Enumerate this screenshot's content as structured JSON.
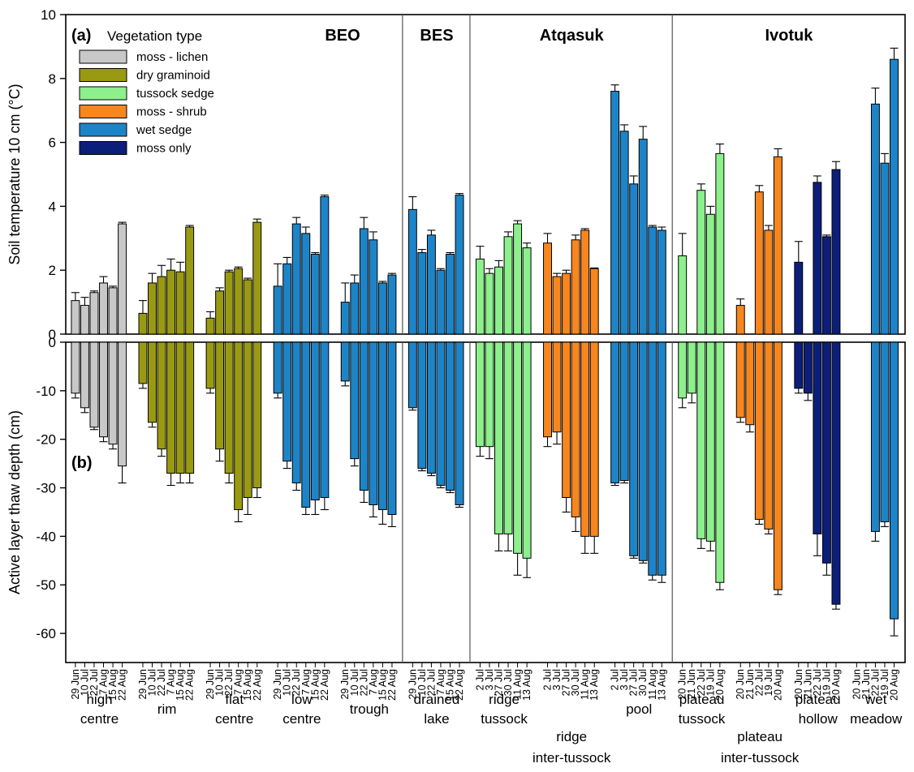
{
  "chart_data": {
    "type": "bar",
    "panels": [
      {
        "id": "a",
        "label": "(a)",
        "ylabel": "Soil temperature 10 cm  (°C)",
        "ylim": [
          0,
          10
        ],
        "yticks": [
          "0",
          "2",
          "4",
          "6",
          "8",
          "10"
        ],
        "ytick_values": [
          0,
          2,
          4,
          6,
          8,
          10
        ]
      },
      {
        "id": "b",
        "label": "(b)",
        "ylabel": "Active layer thaw depth (cm)",
        "ylim": [
          -66,
          0
        ],
        "yticks": [
          "0",
          "-10",
          "-20",
          "-30",
          "-40",
          "-50",
          "-60"
        ],
        "ytick_values": [
          0,
          -10,
          -20,
          -30,
          -40,
          -50,
          -60
        ]
      }
    ],
    "legend": {
      "title": "Vegetation type",
      "placement": "top-left",
      "items": [
        {
          "name": "moss - lichen",
          "color": "#c8c8c8"
        },
        {
          "name": "dry graminoid",
          "color": "#9a9a12"
        },
        {
          "name": "tussock sedge",
          "color": "#8cf08c"
        },
        {
          "name": "moss - shrub",
          "color": "#f7861f"
        },
        {
          "name": "wet sedge",
          "color": "#1e84c8"
        },
        {
          "name": "moss only",
          "color": "#0b1f7a"
        }
      ]
    },
    "sites": [
      {
        "name": "BEO",
        "first_group": 0,
        "last_group": 4
      },
      {
        "name": "BES",
        "first_group": 5,
        "last_group": 5
      },
      {
        "name": "Atqasuk",
        "first_group": 6,
        "last_group": 8
      },
      {
        "name": "Ivotuk",
        "first_group": 9,
        "last_group": 12
      }
    ],
    "groups": [
      {
        "label": [
          "high",
          "centre"
        ],
        "veg": 0,
        "dates": [
          "29 Jun",
          "10 Jul",
          "22 Jul",
          "7 Aug",
          "15 Aug",
          "22 Aug"
        ],
        "temp": [
          1.05,
          0.9,
          1.3,
          1.6,
          1.45,
          3.45
        ],
        "temp_err": [
          0.25,
          0.25,
          0.05,
          0.2,
          0.05,
          0.05
        ],
        "thaw": [
          -10.5,
          -13.5,
          -17.5,
          -19.5,
          -21,
          -25.5
        ],
        "thaw_err": [
          1,
          1,
          0.5,
          1,
          1,
          3.5
        ]
      },
      {
        "label": [
          "rim"
        ],
        "veg": 1,
        "dates": [
          "29 Jun",
          "10 Jul",
          "22 Jul",
          "7 Aug",
          "15 Aug",
          "22 Aug"
        ],
        "temp": [
          0.65,
          1.6,
          1.8,
          2.0,
          1.95,
          3.35
        ],
        "temp_err": [
          0.4,
          0.3,
          0.35,
          0.35,
          0.3,
          0.05
        ],
        "thaw": [
          -8.5,
          -16.5,
          -22,
          -27,
          -27,
          -27
        ],
        "thaw_err": [
          1,
          1,
          1.5,
          2.5,
          2,
          2
        ]
      },
      {
        "label": [
          "flat",
          "centre"
        ],
        "veg": 1,
        "dates": [
          "29 Jun",
          "10 Jul",
          "22 Jul",
          "7 Aug",
          "15 Aug",
          "22 Aug"
        ],
        "temp": [
          0.5,
          1.35,
          1.95,
          2.05,
          1.7,
          3.5
        ],
        "temp_err": [
          0.2,
          0.1,
          0.05,
          0.05,
          0.05,
          0.1
        ],
        "thaw": [
          -9.5,
          -22,
          -27,
          -34.5,
          -32,
          -30
        ],
        "thaw_err": [
          1,
          2.5,
          2,
          2.5,
          3.5,
          2
        ]
      },
      {
        "label": [
          "low",
          "centre"
        ],
        "veg": 4,
        "dates": [
          "29 Jun",
          "10 Jul",
          "22 Jul",
          "7 Aug",
          "15 Aug",
          "22 Aug"
        ],
        "temp": [
          1.5,
          2.2,
          3.45,
          3.15,
          2.5,
          4.3
        ],
        "temp_err": [
          0.7,
          0.2,
          0.2,
          0.2,
          0.05,
          0.05
        ],
        "thaw": [
          -10.5,
          -24.5,
          -29,
          -34,
          -32.5,
          -32
        ],
        "thaw_err": [
          1,
          1.5,
          1.5,
          1.5,
          3,
          2.5
        ]
      },
      {
        "label": [
          "trough"
        ],
        "veg": 4,
        "dates": [
          "29 Jun",
          "10 Jul",
          "22 Jul",
          "7 Aug",
          "15 Aug",
          "22 Aug"
        ],
        "temp": [
          1.0,
          1.6,
          3.3,
          2.95,
          1.6,
          1.85
        ],
        "temp_err": [
          0.6,
          0.25,
          0.35,
          0.25,
          0.05,
          0.05
        ],
        "thaw": [
          -8,
          -24,
          -30.5,
          -33.5,
          -34.5,
          -35.5
        ],
        "thaw_err": [
          1,
          1.5,
          2.5,
          2.5,
          3,
          2.5
        ]
      },
      {
        "label": [
          "drained",
          "lake"
        ],
        "veg": 4,
        "dates": [
          "29 Jun",
          "10 Jul",
          "22 Jul",
          "7 Aug",
          "15 Aug",
          "22 Aug"
        ],
        "temp": [
          3.9,
          2.55,
          3.1,
          2.0,
          2.5,
          4.35
        ],
        "temp_err": [
          0.4,
          0.1,
          0.15,
          0.05,
          0.05,
          0.05
        ],
        "thaw": [
          -13.5,
          -26,
          -27,
          -29.5,
          -30.5,
          -33.5
        ],
        "thaw_err": [
          0.5,
          0.5,
          0.5,
          0.5,
          0.5,
          0.5
        ]
      },
      {
        "label": [
          "ridge",
          "tussock"
        ],
        "veg": 2,
        "dates": [
          "2 Jul",
          "3 Jul",
          "27 Jul",
          "30 Jul",
          "11 Aug",
          "13 Aug"
        ],
        "temp": [
          2.35,
          1.9,
          2.1,
          3.05,
          3.45,
          2.7
        ],
        "temp_err": [
          0.4,
          0.15,
          0.2,
          0.15,
          0.1,
          0.15
        ],
        "thaw": [
          -21.5,
          -21.5,
          -39.5,
          -39.5,
          -43.5,
          -44.5
        ],
        "thaw_err": [
          2,
          2.5,
          3.5,
          3.5,
          4.5,
          4
        ]
      },
      {
        "label": [
          "ridge",
          "inter-tussock"
        ],
        "veg": 3,
        "dates": [
          "2 Jul",
          "3 Jul",
          "27 Jul",
          "30 Jul",
          "11 Aug",
          "13 Aug"
        ],
        "temp": [
          2.85,
          1.8,
          1.9,
          2.95,
          3.25,
          2.05
        ],
        "temp_err": [
          0.3,
          0.1,
          0.1,
          0.15,
          0.05,
          0.02
        ],
        "thaw": [
          -19.5,
          -18.5,
          -32,
          -36,
          -40,
          -40
        ],
        "thaw_err": [
          2,
          2.5,
          3,
          3,
          3.5,
          3.5
        ]
      },
      {
        "label": [
          "pool"
        ],
        "veg": 4,
        "dates": [
          "2 Jul",
          "3 Jul",
          "27 Jul",
          "30 Jul",
          "11 Aug",
          "13 Aug"
        ],
        "temp": [
          7.6,
          6.35,
          4.7,
          6.1,
          3.35,
          3.25
        ],
        "temp_err": [
          0.2,
          0.2,
          0.25,
          0.4,
          0.05,
          0.1
        ],
        "thaw": [
          -29,
          -28.5,
          -44,
          -45,
          -48,
          -48
        ],
        "thaw_err": [
          0.5,
          0.5,
          0.5,
          0.5,
          1,
          1.5
        ]
      },
      {
        "label": [
          "plateau",
          "tussock"
        ],
        "veg": 2,
        "dates": [
          "20 Jun",
          "21 Jun",
          "22 Jul",
          "19 Jul",
          "20 Aug"
        ],
        "temp": [
          2.45,
          null,
          4.5,
          3.75,
          5.65
        ],
        "temp_err": [
          0.7,
          0,
          0.2,
          0.25,
          0.3
        ],
        "thaw": [
          -11.5,
          -10.5,
          -40.5,
          -41,
          -49.5
        ],
        "thaw_err": [
          2,
          2,
          2,
          2,
          1.5
        ]
      },
      {
        "label": [
          "plateau",
          "inter-tussock"
        ],
        "veg": 3,
        "dates": [
          "20 Jun",
          "21 Jun",
          "22 Jul",
          "19 Jul",
          "20 Aug"
        ],
        "temp": [
          0.9,
          null,
          4.45,
          3.25,
          5.55
        ],
        "temp_err": [
          0.2,
          0,
          0.2,
          0.15,
          0.25
        ],
        "thaw": [
          -15.5,
          -17,
          -36.5,
          -38.5,
          -51
        ],
        "thaw_err": [
          1,
          1.5,
          1,
          1,
          1
        ]
      },
      {
        "label": [
          "plateau",
          "hollow"
        ],
        "veg": 5,
        "dates": [
          "20 Jun",
          "21 Jun",
          "22 Jul",
          "19 Jul",
          "20 Aug"
        ],
        "temp": [
          2.25,
          null,
          4.75,
          3.05,
          5.15
        ],
        "temp_err": [
          0.65,
          0,
          0.2,
          0.05,
          0.25
        ],
        "thaw": [
          -9.5,
          -10.5,
          -39.5,
          -45.5,
          -54
        ],
        "thaw_err": [
          1,
          1.5,
          4.5,
          2.5,
          1
        ]
      },
      {
        "label": [
          "wet",
          "meadow"
        ],
        "veg": 4,
        "dates": [
          "20 Jun",
          "21 Jun",
          "22 Jul",
          "19 Jul",
          "20 Aug"
        ],
        "temp": [
          null,
          null,
          7.2,
          5.35,
          8.6
        ],
        "temp_err": [
          0,
          0,
          0.5,
          0.3,
          0.35
        ],
        "thaw": [
          null,
          null,
          -39,
          -37,
          -57
        ],
        "thaw_err": [
          0,
          0,
          2,
          1,
          3.5
        ]
      }
    ]
  }
}
